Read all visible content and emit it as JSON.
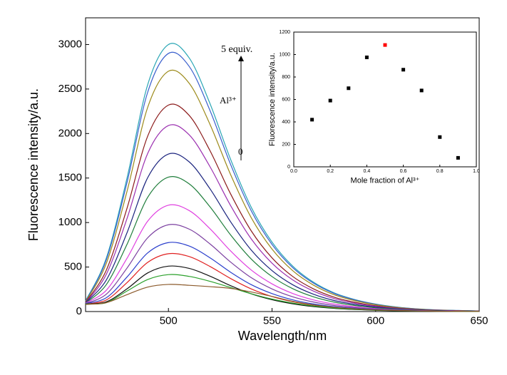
{
  "chart_data": [
    {
      "type": "line",
      "xlabel": "Wavelength/nm",
      "ylabel": "Fluorescence intensity/a.u.",
      "annotations": [
        "5 equiv.",
        "Al³⁺",
        "0"
      ],
      "x": [
        460,
        470,
        480,
        490,
        500,
        510,
        520,
        530,
        540,
        550,
        560,
        570,
        580,
        590,
        600,
        610,
        620,
        630,
        640,
        650
      ],
      "xlim": [
        460,
        650
      ],
      "xticks": [
        500,
        550,
        600,
        650
      ],
      "ylim": [
        0,
        3300
      ],
      "yticks": [
        0,
        500,
        1000,
        1500,
        2000,
        2500,
        3000
      ],
      "series": [
        {
          "color": "#2aa6b5",
          "values": [
            120,
            600,
            1500,
            2550,
            3000,
            2850,
            2340,
            1710,
            1170,
            780,
            510,
            330,
            210,
            135,
            84,
            51,
            30,
            18,
            12,
            6
          ]
        },
        {
          "color": "#3a5fcd",
          "values": [
            115,
            580,
            1450,
            2465,
            2900,
            2755,
            2262,
            1653,
            1131,
            754,
            493,
            319,
            203,
            131,
            81,
            49,
            29,
            17,
            12,
            6
          ]
        },
        {
          "color": "#9c8a1a",
          "values": [
            110,
            540,
            1350,
            2295,
            2700,
            2565,
            2106,
            1539,
            1053,
            702,
            459,
            297,
            189,
            122,
            76,
            46,
            27,
            16,
            11,
            5
          ]
        },
        {
          "color": "#8b1a1a",
          "values": [
            105,
            464,
            1160,
            1972,
            2320,
            2204,
            1810,
            1322,
            905,
            603,
            394,
            255,
            162,
            104,
            65,
            39,
            23,
            14,
            9,
            5
          ]
        },
        {
          "color": "#9b30b0",
          "values": [
            100,
            418,
            1045,
            1777,
            2090,
            1986,
            1630,
            1191,
            815,
            543,
            355,
            230,
            146,
            94,
            59,
            36,
            21,
            13,
            8,
            4
          ]
        },
        {
          "color": "#1a237e",
          "values": [
            100,
            354,
            885,
            1505,
            1770,
            1682,
            1381,
            1009,
            690,
            460,
            301,
            195,
            124,
            80,
            50,
            30,
            18,
            11,
            7,
            4
          ]
        },
        {
          "color": "#1e7d3a",
          "values": [
            95,
            302,
            755,
            1284,
            1510,
            1435,
            1178,
            861,
            589,
            393,
            257,
            166,
            106,
            68,
            42,
            26,
            15,
            9,
            6,
            3
          ]
        },
        {
          "color": "#e040e0",
          "values": [
            95,
            239,
            598,
            1016,
            1195,
            1135,
            932,
            681,
            466,
            311,
            203,
            131,
            84,
            54,
            33,
            20,
            12,
            7,
            5,
            2
          ]
        },
        {
          "color": "#7b3fa0",
          "values": [
            90,
            195,
            488,
            829,
            975,
            926,
            761,
            556,
            380,
            254,
            166,
            107,
            68,
            44,
            27,
            17,
            10,
            6,
            4,
            2
          ]
        },
        {
          "color": "#2b3fcc",
          "values": [
            90,
            155,
            388,
            659,
            775,
            736,
            605,
            442,
            302,
            202,
            132,
            85,
            54,
            35,
            22,
            13,
            8,
            5,
            3,
            2
          ]
        },
        {
          "color": "#e02020",
          "values": [
            85,
            130,
            325,
            553,
            650,
            618,
            507,
            371,
            254,
            169,
            111,
            72,
            46,
            29,
            18,
            11,
            7,
            4,
            3,
            1
          ]
        },
        {
          "color": "#111111",
          "values": [
            85,
            110,
            255,
            434,
            510,
            485,
            398,
            291,
            199,
            133,
            87,
            56,
            36,
            23,
            14,
            9,
            5,
            3,
            2,
            1
          ]
        },
        {
          "color": "#2aa02a",
          "values": [
            85,
            100,
            230,
            360,
            415,
            395,
            340,
            270,
            200,
            140,
            95,
            62,
            40,
            26,
            16,
            10,
            6,
            4,
            3,
            1
          ]
        },
        {
          "color": "#8b5a2b",
          "values": [
            80,
            100,
            190,
            275,
            305,
            295,
            280,
            260,
            220,
            170,
            115,
            75,
            48,
            31,
            19,
            12,
            7,
            4,
            3,
            2
          ]
        }
      ]
    },
    {
      "type": "scatter",
      "xlabel": "Mole fraction of Al³⁺",
      "ylabel": "Fluorescence intensity/a.u.",
      "x": [
        0.1,
        0.2,
        0.3,
        0.4,
        0.5,
        0.6,
        0.7,
        0.8,
        0.9
      ],
      "values": [
        420,
        590,
        700,
        975,
        1085,
        865,
        680,
        265,
        80
      ],
      "colors": [
        "#000000",
        "#000000",
        "#000000",
        "#000000",
        "#ff0000",
        "#000000",
        "#000000",
        "#000000",
        "#000000"
      ],
      "xlim": [
        0,
        1
      ],
      "xticks": [
        {
          "value": 0,
          "label": "0.0"
        },
        0.2,
        0.4,
        0.6,
        0.8,
        {
          "value": 1,
          "label": "1.0"
        }
      ],
      "ylim": [
        0,
        1200
      ],
      "yticks": [
        0,
        200,
        400,
        600,
        800,
        1000,
        1200
      ]
    }
  ]
}
